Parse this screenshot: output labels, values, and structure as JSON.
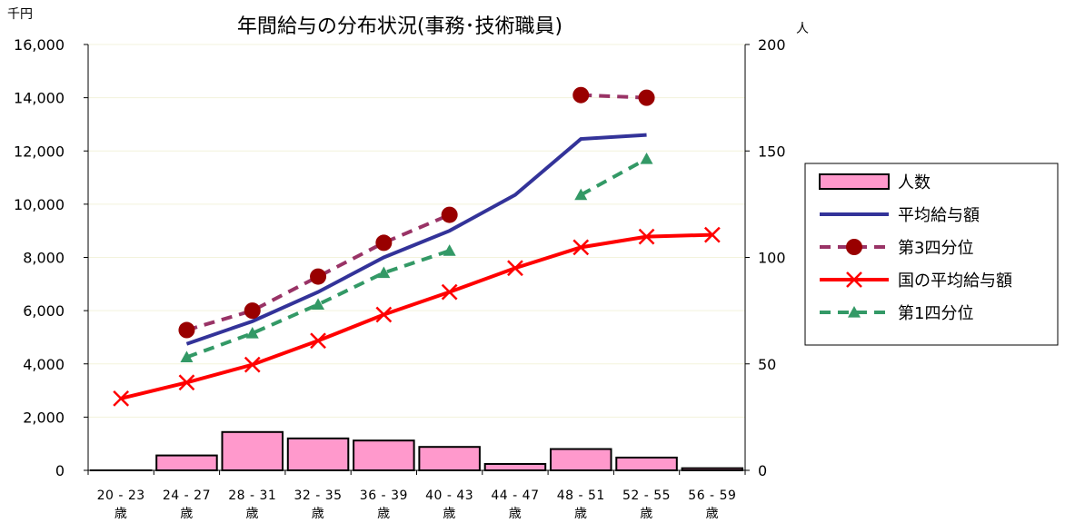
{
  "chart_data": {
    "type": "bar+line",
    "title": "年間給与の分布状況(事務･技術職員)",
    "left_axis": {
      "unit": "千円",
      "range": [
        0,
        16000
      ],
      "ticks": [
        "0",
        "2,000",
        "4,000",
        "6,000",
        "8,000",
        "10,000",
        "12,000",
        "14,000",
        "16,000"
      ]
    },
    "right_axis": {
      "unit": "人",
      "range": [
        0,
        200
      ],
      "ticks": [
        "0",
        "50",
        "100",
        "150",
        "200"
      ]
    },
    "categories": [
      {
        "top": "20 - 23",
        "bottom": "歳"
      },
      {
        "top": "24 - 27",
        "bottom": "歳"
      },
      {
        "top": "28 - 31",
        "bottom": "歳"
      },
      {
        "top": "32 - 35",
        "bottom": "歳"
      },
      {
        "top": "36 - 39",
        "bottom": "歳"
      },
      {
        "top": "40 - 43",
        "bottom": "歳"
      },
      {
        "top": "44 - 47",
        "bottom": "歳"
      },
      {
        "top": "48 - 51",
        "bottom": "歳"
      },
      {
        "top": "52 - 55",
        "bottom": "歳"
      },
      {
        "top": "56 - 59",
        "bottom": "歳"
      }
    ],
    "series": [
      {
        "name": "人数",
        "kind": "bar",
        "axis": "right",
        "color": "#ff99cc",
        "values": [
          0,
          7,
          18,
          15,
          14,
          11,
          3,
          10,
          6,
          1
        ]
      },
      {
        "name": "平均給与額",
        "kind": "line",
        "axis": "left",
        "color": "#333399",
        "marker": "none",
        "dash": false,
        "values": [
          null,
          4750,
          5600,
          6700,
          8000,
          9000,
          10350,
          12450,
          12600,
          null
        ]
      },
      {
        "name": "第3四分位",
        "kind": "line",
        "axis": "left",
        "color": "#993366",
        "marker": "circle",
        "marker_color": "#990000",
        "dash": true,
        "values": [
          null,
          5270,
          6000,
          7280,
          8550,
          9600,
          null,
          14100,
          14000,
          null
        ]
      },
      {
        "name": "国の平均給与額",
        "kind": "line",
        "axis": "left",
        "color": "#ff0000",
        "marker": "x",
        "dash": false,
        "values": [
          2700,
          3300,
          3970,
          4870,
          5850,
          6700,
          7600,
          8380,
          8780,
          8850
        ]
      },
      {
        "name": "第1四分位",
        "kind": "line",
        "axis": "left",
        "color": "#339966",
        "marker": "triangle",
        "dash": true,
        "values": [
          null,
          4250,
          5150,
          6230,
          7420,
          8250,
          null,
          10350,
          11700,
          null
        ]
      }
    ],
    "grid": true,
    "legend_position": "right"
  }
}
